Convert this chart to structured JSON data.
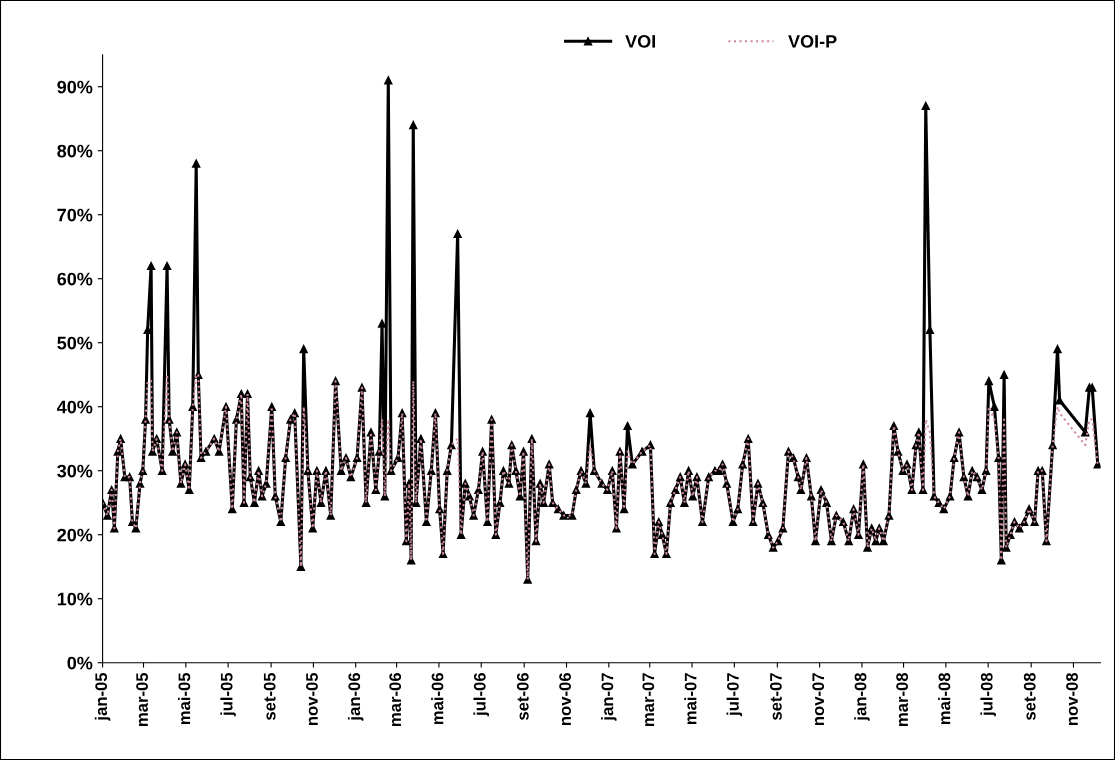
{
  "chart_data": {
    "type": "line",
    "x": [
      "2005-01-01",
      "2005-01-08",
      "2005-01-14",
      "2005-01-18",
      "2005-01-23",
      "2005-01-27",
      "2005-02-02",
      "2005-02-09",
      "2005-02-13",
      "2005-02-18",
      "2005-02-24",
      "2005-02-28",
      "2005-03-04",
      "2005-03-07",
      "2005-03-12",
      "2005-03-14",
      "2005-03-20",
      "2005-03-28",
      "2005-04-04",
      "2005-04-07",
      "2005-04-12",
      "2005-04-18",
      "2005-04-24",
      "2005-04-30",
      "2005-05-06",
      "2005-05-11",
      "2005-05-16",
      "2005-05-19",
      "2005-05-23",
      "2005-05-30",
      "2005-06-11",
      "2005-06-18",
      "2005-06-28",
      "2005-07-07",
      "2005-07-13",
      "2005-07-20",
      "2005-07-24",
      "2005-07-29",
      "2005-08-02",
      "2005-08-08",
      "2005-08-14",
      "2005-08-19",
      "2005-08-25",
      "2005-09-02",
      "2005-09-07",
      "2005-09-15",
      "2005-09-22",
      "2005-09-29",
      "2005-10-05",
      "2005-10-14",
      "2005-10-18",
      "2005-10-24",
      "2005-10-31",
      "2005-11-06",
      "2005-11-12",
      "2005-11-19",
      "2005-11-26",
      "2005-12-03",
      "2005-12-11",
      "2005-12-18",
      "2005-12-25",
      "2006-01-03",
      "2006-01-10",
      "2006-01-16",
      "2006-01-23",
      "2006-01-30",
      "2006-02-04",
      "2006-02-08",
      "2006-02-12",
      "2006-02-17",
      "2006-02-21",
      "2006-03-03",
      "2006-03-09",
      "2006-03-15",
      "2006-03-19",
      "2006-03-22",
      "2006-03-25",
      "2006-03-29",
      "2006-04-05",
      "2006-04-13",
      "2006-04-20",
      "2006-04-26",
      "2006-05-02",
      "2006-05-07",
      "2006-05-13",
      "2006-05-19",
      "2006-05-28",
      "2006-06-02",
      "2006-06-08",
      "2006-06-14",
      "2006-06-20",
      "2006-06-27",
      "2006-07-03",
      "2006-07-10",
      "2006-07-16",
      "2006-07-22",
      "2006-07-28",
      "2006-08-02",
      "2006-08-10",
      "2006-08-14",
      "2006-08-20",
      "2006-08-26",
      "2006-08-31",
      "2006-09-06",
      "2006-09-12",
      "2006-09-18",
      "2006-09-24",
      "2006-09-29",
      "2006-10-07",
      "2006-10-12",
      "2006-10-20",
      "2006-10-28",
      "2006-11-09",
      "2006-11-15",
      "2006-11-22",
      "2006-11-29",
      "2006-12-05",
      "2006-12-11",
      "2006-12-22",
      "2006-12-30",
      "2007-01-06",
      "2007-01-12",
      "2007-01-17",
      "2007-01-23",
      "2007-01-28",
      "2007-02-04",
      "2007-02-18",
      "2007-03-02",
      "2007-03-08",
      "2007-03-14",
      "2007-03-19",
      "2007-03-25",
      "2007-03-31",
      "2007-04-07",
      "2007-04-14",
      "2007-04-20",
      "2007-04-26",
      "2007-05-02",
      "2007-05-08",
      "2007-05-16",
      "2007-05-25",
      "2007-06-03",
      "2007-06-09",
      "2007-06-14",
      "2007-06-20",
      "2007-06-29",
      "2007-07-06",
      "2007-07-13",
      "2007-07-21",
      "2007-07-28",
      "2007-08-04",
      "2007-08-11",
      "2007-08-19",
      "2007-08-26",
      "2007-09-02",
      "2007-09-09",
      "2007-09-17",
      "2007-09-24",
      "2007-10-01",
      "2007-10-05",
      "2007-10-13",
      "2007-10-20",
      "2007-10-26",
      "2007-11-03",
      "2007-11-11",
      "2007-11-18",
      "2007-11-25",
      "2007-12-05",
      "2007-12-13",
      "2007-12-20",
      "2007-12-27",
      "2008-01-03",
      "2008-01-09",
      "2008-01-15",
      "2008-01-21",
      "2008-01-26",
      "2008-02-01",
      "2008-02-09",
      "2008-02-16",
      "2008-02-22",
      "2008-02-29",
      "2008-03-06",
      "2008-03-13",
      "2008-03-19",
      "2008-03-23",
      "2008-03-29",
      "2008-04-02",
      "2008-04-08",
      "2008-04-14",
      "2008-04-21",
      "2008-04-28",
      "2008-05-07",
      "2008-05-13",
      "2008-05-20",
      "2008-05-27",
      "2008-06-02",
      "2008-06-08",
      "2008-06-15",
      "2008-06-22",
      "2008-06-28",
      "2008-07-02",
      "2008-07-10",
      "2008-07-16",
      "2008-07-20",
      "2008-07-24",
      "2008-07-27",
      "2008-08-02",
      "2008-08-08",
      "2008-08-15",
      "2008-08-22",
      "2008-08-29",
      "2008-09-06",
      "2008-09-11",
      "2008-09-17",
      "2008-09-23",
      "2008-10-02",
      "2008-10-09",
      "2008-10-12",
      "2008-11-18",
      "2008-11-24",
      "2008-11-28",
      "2008-12-06"
    ],
    "series": [
      {
        "name": "VOI",
        "color": "#000000",
        "marker": "triangle",
        "line_style": "solid",
        "values": [
          25,
          23,
          27,
          21,
          33,
          35,
          29,
          29,
          22,
          21,
          28,
          30,
          38,
          52,
          62,
          33,
          35,
          30,
          62,
          38,
          33,
          36,
          28,
          31,
          27,
          40,
          78,
          45,
          32,
          33,
          35,
          33,
          40,
          24,
          38,
          42,
          25,
          42,
          29,
          25,
          30,
          26,
          28,
          40,
          26,
          22,
          32,
          38,
          39,
          15,
          49,
          30,
          21,
          30,
          25,
          30,
          23,
          44,
          30,
          32,
          29,
          32,
          43,
          25,
          36,
          27,
          33,
          53,
          26,
          91,
          30,
          32,
          39,
          19,
          28,
          16,
          84,
          25,
          35,
          22,
          30,
          39,
          24,
          17,
          30,
          34,
          67,
          20,
          28,
          26,
          23,
          27,
          33,
          22,
          38,
          20,
          25,
          30,
          28,
          34,
          30,
          26,
          33,
          13,
          35,
          19,
          28,
          25,
          31,
          25,
          24,
          23,
          23,
          27,
          30,
          28,
          39,
          30,
          28,
          27,
          30,
          21,
          33,
          24,
          37,
          31,
          33,
          34,
          17,
          22,
          20,
          17,
          25,
          27,
          29,
          25,
          30,
          26,
          29,
          22,
          29,
          30,
          30,
          31,
          28,
          22,
          24,
          31,
          35,
          22,
          28,
          25,
          20,
          18,
          19,
          21,
          33,
          32,
          29,
          27,
          32,
          26,
          19,
          27,
          25,
          19,
          23,
          22,
          19,
          24,
          20,
          31,
          18,
          21,
          19,
          21,
          19,
          23,
          37,
          33,
          30,
          31,
          27,
          34,
          36,
          27,
          87,
          52,
          26,
          25,
          24,
          26,
          32,
          36,
          29,
          26,
          30,
          29,
          27,
          30,
          44,
          40,
          32,
          16,
          45,
          18,
          20,
          22,
          21,
          22,
          24,
          22,
          30,
          30,
          19,
          34,
          49,
          41,
          36,
          43,
          43,
          31
        ]
      },
      {
        "name": "VOI-P",
        "color": "#cc8a99",
        "marker": "none",
        "line_style": "dotted",
        "values": [
          25,
          23,
          27,
          21,
          33,
          35,
          29,
          29,
          22,
          21,
          28,
          30,
          38,
          44,
          44,
          33,
          35,
          30,
          45,
          38,
          33,
          36,
          28,
          31,
          27,
          40,
          45,
          45,
          32,
          33,
          35,
          33,
          40,
          24,
          38,
          42,
          25,
          42,
          29,
          25,
          30,
          26,
          28,
          40,
          26,
          22,
          32,
          38,
          39,
          15,
          40,
          30,
          21,
          30,
          25,
          30,
          23,
          44,
          30,
          32,
          29,
          32,
          43,
          25,
          36,
          27,
          33,
          38,
          26,
          38,
          30,
          32,
          39,
          19,
          28,
          16,
          44,
          25,
          35,
          22,
          30,
          39,
          24,
          17,
          30,
          34,
          35,
          20,
          28,
          26,
          23,
          27,
          33,
          22,
          38,
          20,
          25,
          30,
          28,
          34,
          30,
          26,
          33,
          13,
          35,
          19,
          28,
          25,
          31,
          25,
          24,
          23,
          23,
          27,
          30,
          28,
          34,
          30,
          28,
          27,
          30,
          21,
          33,
          24,
          33,
          31,
          33,
          34,
          17,
          22,
          20,
          17,
          25,
          27,
          29,
          25,
          30,
          26,
          29,
          22,
          29,
          30,
          30,
          31,
          28,
          22,
          24,
          31,
          35,
          22,
          28,
          25,
          20,
          18,
          19,
          21,
          33,
          32,
          29,
          27,
          32,
          26,
          19,
          27,
          25,
          19,
          23,
          22,
          19,
          24,
          20,
          31,
          18,
          21,
          19,
          21,
          19,
          23,
          37,
          33,
          30,
          31,
          27,
          34,
          36,
          27,
          38,
          36,
          26,
          25,
          24,
          26,
          32,
          36,
          29,
          26,
          30,
          29,
          27,
          30,
          40,
          38,
          32,
          16,
          38,
          18,
          20,
          22,
          21,
          22,
          24,
          22,
          30,
          30,
          19,
          34,
          40,
          39,
          34,
          38,
          38,
          31
        ]
      }
    ],
    "xlim": [
      "2005-01-01",
      "2008-12-10"
    ],
    "xticks": [
      {
        "value": "2005-01-01",
        "label": "jan-05"
      },
      {
        "value": "2005-03-01",
        "label": "mar-05"
      },
      {
        "value": "2005-05-01",
        "label": "mai-05"
      },
      {
        "value": "2005-07-01",
        "label": "jul-05"
      },
      {
        "value": "2005-09-01",
        "label": "set-05"
      },
      {
        "value": "2005-11-01",
        "label": "nov-05"
      },
      {
        "value": "2006-01-01",
        "label": "jan-06"
      },
      {
        "value": "2006-03-01",
        "label": "mar-06"
      },
      {
        "value": "2006-05-01",
        "label": "mai-06"
      },
      {
        "value": "2006-07-01",
        "label": "jul-06"
      },
      {
        "value": "2006-09-01",
        "label": "set-06"
      },
      {
        "value": "2006-11-01",
        "label": "nov-06"
      },
      {
        "value": "2007-01-01",
        "label": "jan-07"
      },
      {
        "value": "2007-03-01",
        "label": "mar-07"
      },
      {
        "value": "2007-05-01",
        "label": "mai-07"
      },
      {
        "value": "2007-07-01",
        "label": "jul-07"
      },
      {
        "value": "2007-09-01",
        "label": "set-07"
      },
      {
        "value": "2007-11-01",
        "label": "nov-07"
      },
      {
        "value": "2008-01-01",
        "label": "jan-08"
      },
      {
        "value": "2008-03-01",
        "label": "mar-08"
      },
      {
        "value": "2008-05-01",
        "label": "mai-08"
      },
      {
        "value": "2008-07-01",
        "label": "jul-08"
      },
      {
        "value": "2008-09-01",
        "label": "set-08"
      },
      {
        "value": "2008-11-01",
        "label": "nov-08"
      }
    ],
    "ylim": [
      0,
      95
    ],
    "yticks": [
      {
        "value": 0,
        "label": "0%"
      },
      {
        "value": 10,
        "label": "10%"
      },
      {
        "value": 20,
        "label": "20%"
      },
      {
        "value": 30,
        "label": "30%"
      },
      {
        "value": 40,
        "label": "40%"
      },
      {
        "value": 50,
        "label": "50%"
      },
      {
        "value": 60,
        "label": "60%"
      },
      {
        "value": 70,
        "label": "70%"
      },
      {
        "value": 80,
        "label": "80%"
      },
      {
        "value": 90,
        "label": "90%"
      }
    ],
    "grid": false,
    "legend": "top"
  }
}
